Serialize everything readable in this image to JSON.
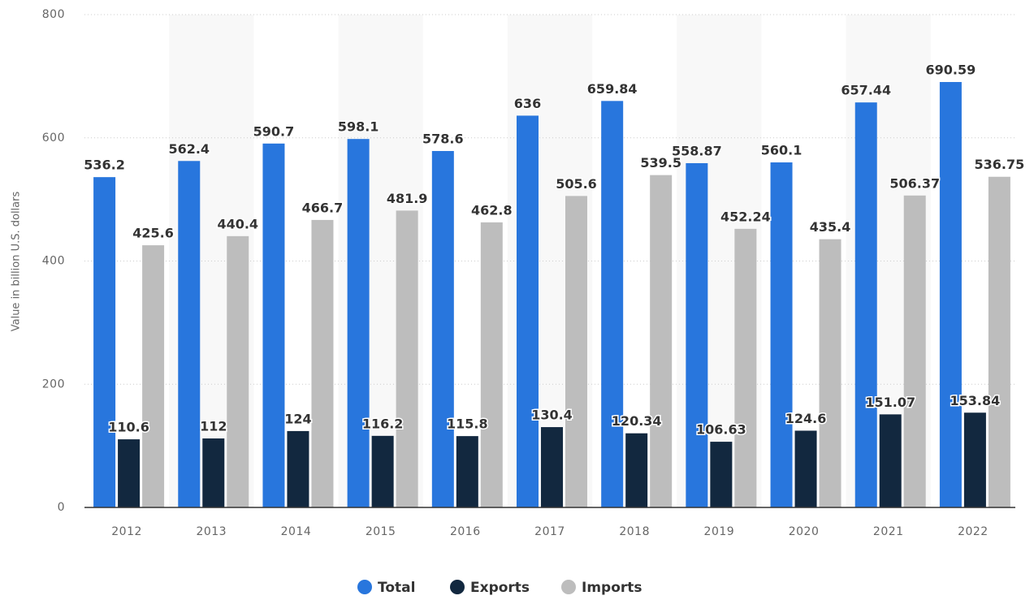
{
  "chart_data": {
    "type": "bar",
    "y_label": "Value in billion U.S. dollars",
    "categories": [
      "2012",
      "2013",
      "2014",
      "2015",
      "2016",
      "2017",
      "2018",
      "2019",
      "2020",
      "2021",
      "2022"
    ],
    "series": [
      {
        "name": "Total",
        "color": "#2876dd",
        "values": [
          536.2,
          562.4,
          590.7,
          598.1,
          578.6,
          636,
          659.84,
          558.87,
          560.1,
          657.44,
          690.59
        ]
      },
      {
        "name": "Exports",
        "color": "#12283f",
        "values": [
          110.6,
          112,
          124,
          116.2,
          115.8,
          130.4,
          120.34,
          106.63,
          124.6,
          151.07,
          153.84
        ]
      },
      {
        "name": "Imports",
        "color": "#bdbdbd",
        "values": [
          425.6,
          440.4,
          466.7,
          481.9,
          462.8,
          505.6,
          539.5,
          452.24,
          435.4,
          506.37,
          536.75
        ]
      }
    ],
    "ylim": [
      0,
      800
    ],
    "yticks": [
      0,
      200,
      400,
      600,
      800
    ],
    "grid": true,
    "legend": "bottom"
  }
}
